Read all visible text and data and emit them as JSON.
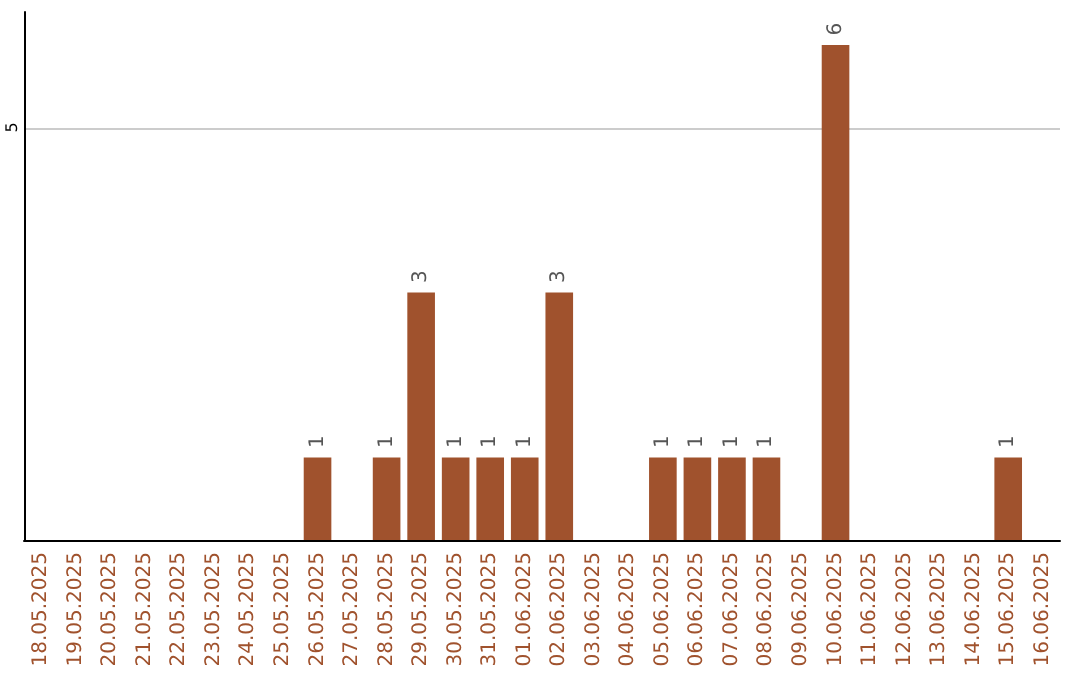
{
  "chart_data": {
    "type": "bar",
    "categories": [
      "18.05.2025",
      "19.05.2025",
      "20.05.2025",
      "21.05.2025",
      "22.05.2025",
      "23.05.2025",
      "24.05.2025",
      "25.05.2025",
      "26.05.2025",
      "27.05.2025",
      "28.05.2025",
      "29.05.2025",
      "30.05.2025",
      "31.05.2025",
      "01.06.2025",
      "02.06.2025",
      "03.06.2025",
      "04.06.2025",
      "05.06.2025",
      "06.06.2025",
      "07.06.2025",
      "08.06.2025",
      "09.06.2025",
      "10.06.2025",
      "11.06.2025",
      "12.06.2025",
      "13.06.2025",
      "14.06.2025",
      "15.06.2025",
      "16.06.2025"
    ],
    "values": [
      0,
      0,
      0,
      0,
      0,
      0,
      0,
      0,
      1,
      0,
      1,
      3,
      1,
      1,
      1,
      3,
      0,
      0,
      1,
      1,
      1,
      1,
      0,
      6,
      0,
      0,
      0,
      0,
      1,
      0
    ],
    "value_labels": [
      null,
      null,
      null,
      null,
      null,
      null,
      null,
      null,
      "1",
      null,
      "1",
      "3",
      "1",
      "1",
      "1",
      "3",
      null,
      null,
      "1",
      "1",
      "1",
      "1",
      null,
      "6",
      null,
      null,
      null,
      null,
      "1",
      null
    ],
    "color": "#a0522d",
    "ylim": [
      0,
      6.4
    ],
    "yticks": [
      5
    ],
    "grid": "y"
  }
}
